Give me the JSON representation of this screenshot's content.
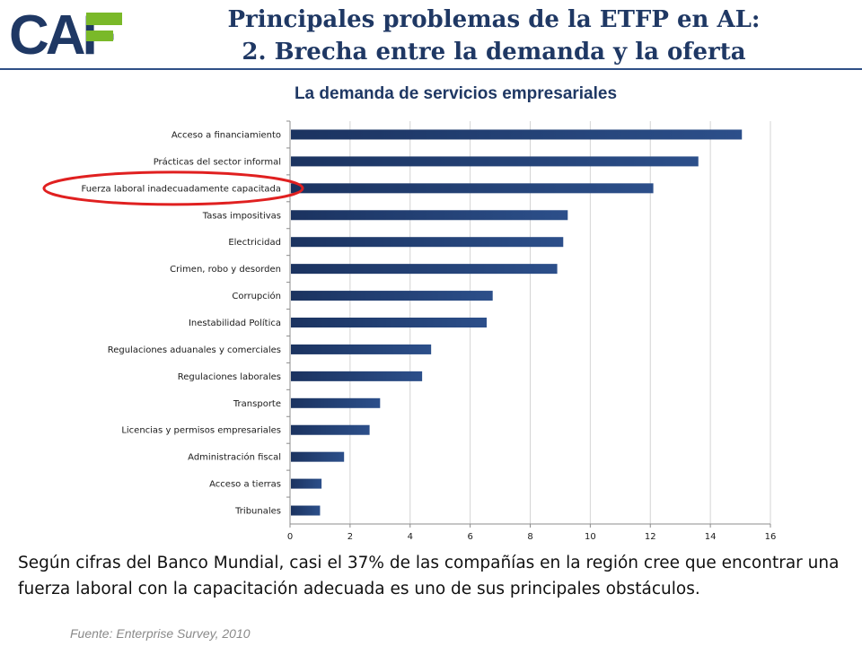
{
  "logo": {
    "text": "CAF"
  },
  "header": {
    "title_line1": "Principales problemas de la ETFP en AL:",
    "title_line2": "2. Brecha entre la demanda y la oferta"
  },
  "chart_data": {
    "type": "bar",
    "orientation": "horizontal",
    "title": "La demanda de servicios empresariales",
    "categories": [
      "Acceso a financiamiento",
      "Prácticas del sector informal",
      "Fuerza laboral inadecuadamente capacitada",
      "Tasas impositivas",
      "Electricidad",
      "Crimen, robo y desorden",
      "Corrupción",
      "Inestabilidad Política",
      "Regulaciones aduanales y comerciales",
      "Regulaciones laborales",
      "Transporte",
      "Licencias y permisos empresariales",
      "Administración fiscal",
      "Acceso a tierras",
      "Tribunales"
    ],
    "values": [
      15.05,
      13.6,
      12.1,
      9.25,
      9.1,
      8.9,
      6.75,
      6.55,
      4.7,
      4.4,
      3.0,
      2.65,
      1.8,
      1.05,
      1.0
    ],
    "xlim": [
      0,
      16
    ],
    "xticks": [
      0,
      2,
      4,
      6,
      8,
      10,
      12,
      14,
      16
    ],
    "grid": true,
    "bar_color": "#1f3864",
    "highlight_category": "Fuerza laboral inadecuadamente capacitada",
    "highlight_color": "#e02020"
  },
  "body_text": "Según cifras del Banco Mundial, casi el 37% de las compañías en la región cree que encontrar una fuerza laboral con la capacitación adecuada es uno de sus principales obstáculos.",
  "source": "Fuente: Enterprise Survey, 2010"
}
